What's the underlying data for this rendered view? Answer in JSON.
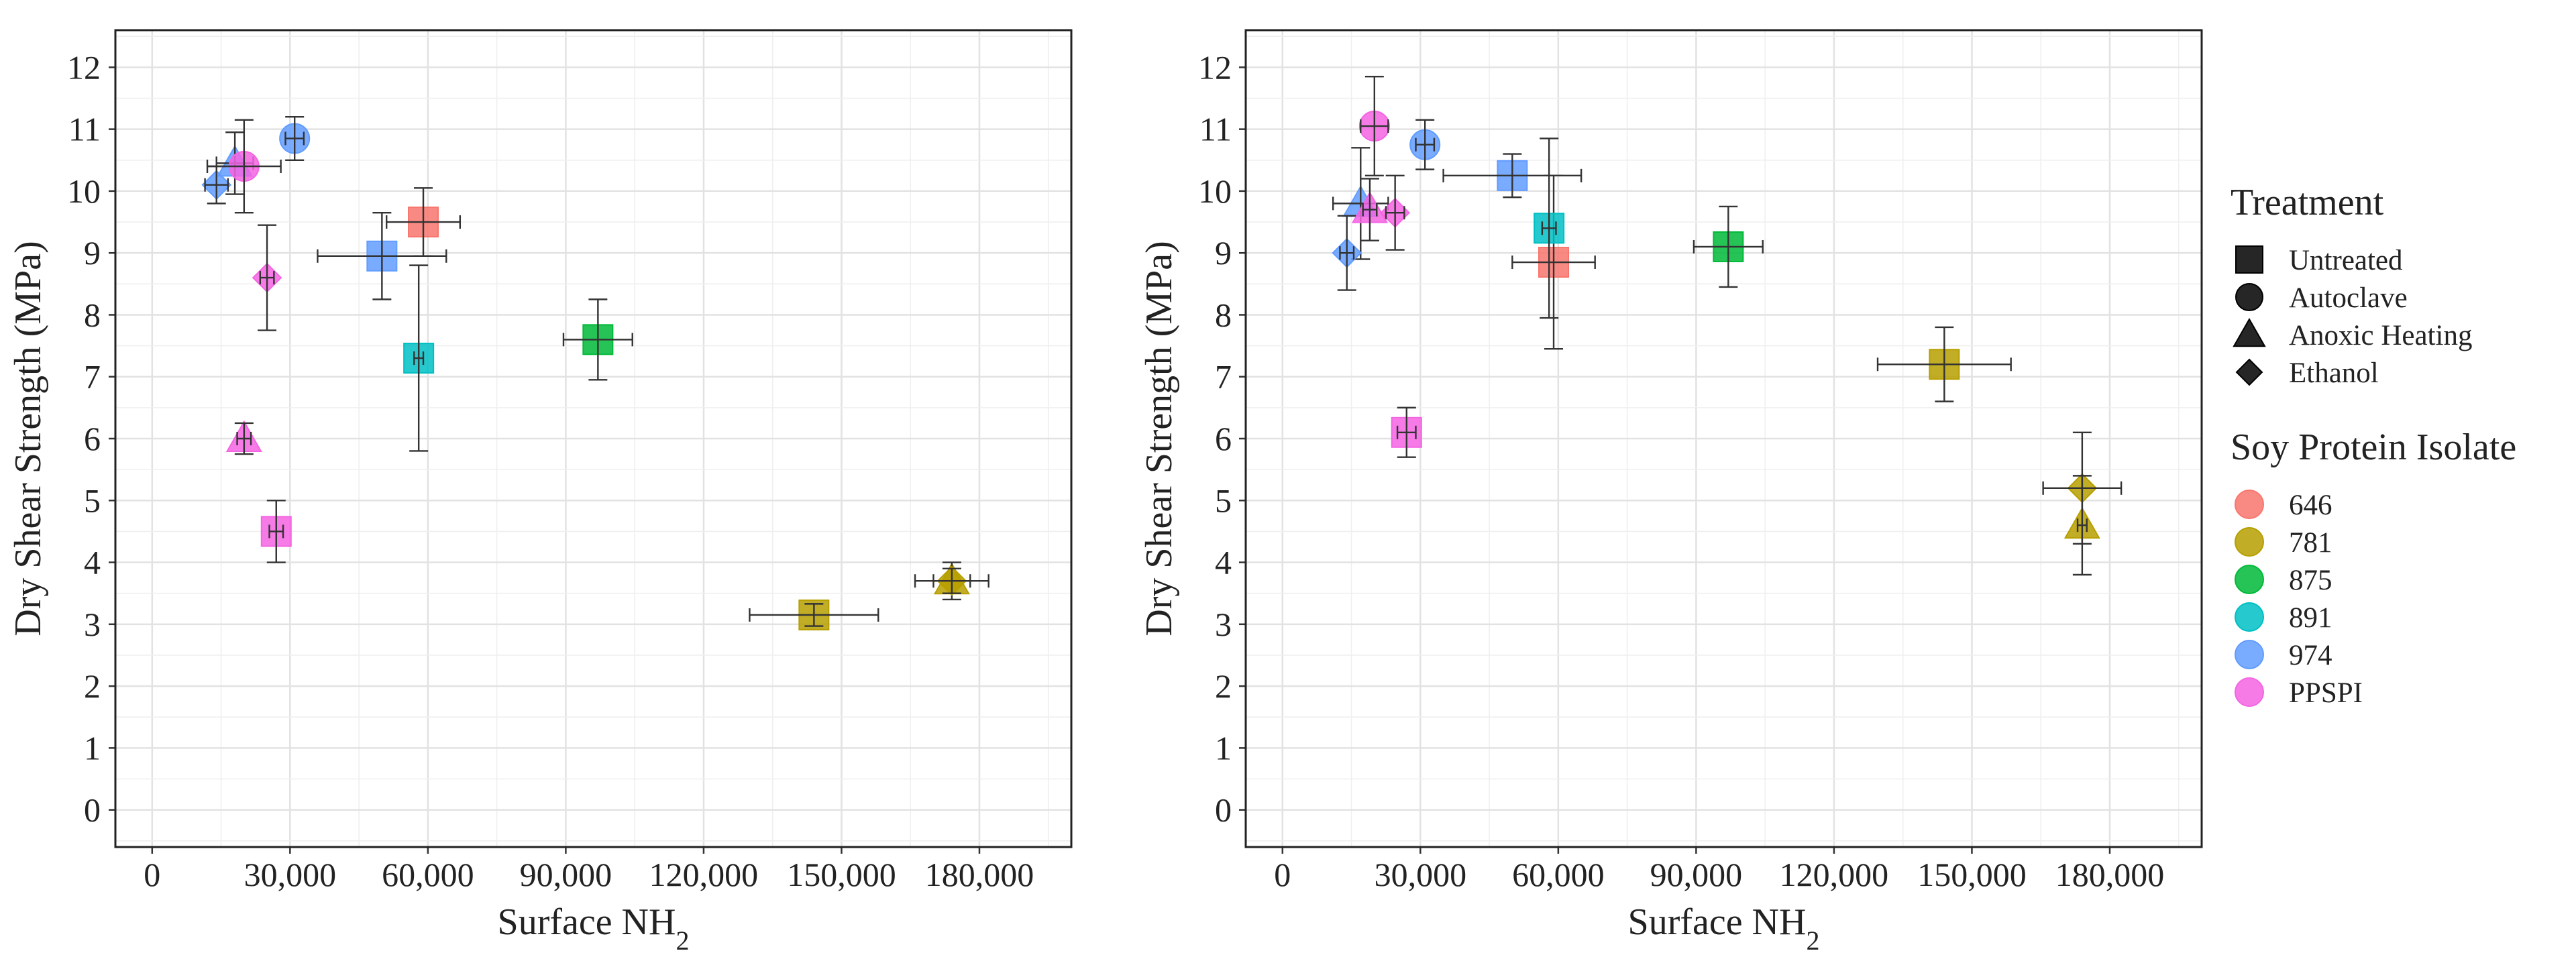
{
  "figure": {
    "legend": {
      "treatment_title": "Treatment",
      "treatment_entries": [
        {
          "label": "Untreated",
          "shape": "square"
        },
        {
          "label": "Autoclave",
          "shape": "circle"
        },
        {
          "label": "Anoxic Heating",
          "shape": "triangle"
        },
        {
          "label": "Ethanol",
          "shape": "diamond"
        }
      ],
      "spi_title": "Soy Protein Isolate",
      "spi_entries": [
        {
          "label": "646",
          "color": "#F8766D"
        },
        {
          "label": "781",
          "color": "#B79F00"
        },
        {
          "label": "875",
          "color": "#00BA38"
        },
        {
          "label": "891",
          "color": "#00BFC4"
        },
        {
          "label": "974",
          "color": "#619CFF"
        },
        {
          "label": "PPSPI",
          "color": "#F564E3"
        }
      ]
    }
  },
  "chart_data": [
    {
      "type": "scatter",
      "title": "",
      "xlabel": "Surface NH",
      "xlabel_subscript": "2",
      "ylabel": "Dry Shear Strength (MPa)",
      "xlim": [
        -8000,
        200000
      ],
      "ylim": [
        -0.6,
        12.6
      ],
      "xticks": [
        0,
        30000,
        60000,
        90000,
        120000,
        150000,
        180000
      ],
      "xtick_labels": [
        "0",
        "30,000",
        "60,000",
        "90,000",
        "120,000",
        "150,000",
        "180,000"
      ],
      "yticks": [
        0,
        1,
        2,
        3,
        4,
        5,
        6,
        7,
        8,
        9,
        10,
        11,
        12
      ],
      "ytick_labels": [
        "0",
        "1",
        "2",
        "3",
        "4",
        "5",
        "6",
        "7",
        "8",
        "9",
        "10",
        "11",
        "12"
      ],
      "grid": true,
      "points": [
        {
          "spi": "646",
          "treatment": "Untreated",
          "x": 59000,
          "y": 9.5,
          "xerr": 8000,
          "yerr": 0.55
        },
        {
          "spi": "781",
          "treatment": "Untreated",
          "x": 144000,
          "y": 3.15,
          "xerr": 14000,
          "yerr": 0.18
        },
        {
          "spi": "781",
          "treatment": "Anoxic Heating",
          "x": 174000,
          "y": 3.7,
          "xerr": 8000,
          "yerr": 0.3
        },
        {
          "spi": "781",
          "treatment": "Ethanol",
          "x": 174000,
          "y": 3.7,
          "xerr": 4000,
          "yerr": 0.2
        },
        {
          "spi": "875",
          "treatment": "Untreated",
          "x": 97000,
          "y": 7.6,
          "xerr": 7500,
          "yerr": 0.65
        },
        {
          "spi": "891",
          "treatment": "Untreated",
          "x": 58000,
          "y": 7.3,
          "xerr": 1000,
          "yerr": 1.5
        },
        {
          "spi": "974",
          "treatment": "Untreated",
          "x": 50000,
          "y": 8.95,
          "xerr": 14000,
          "yerr": 0.7
        },
        {
          "spi": "974",
          "treatment": "Autoclave",
          "x": 31000,
          "y": 10.85,
          "xerr": 2000,
          "yerr": 0.35
        },
        {
          "spi": "974",
          "treatment": "Anoxic Heating",
          "x": 18000,
          "y": 10.45,
          "xerr": 4000,
          "yerr": 0.5
        },
        {
          "spi": "974",
          "treatment": "Ethanol",
          "x": 14000,
          "y": 10.1,
          "xerr": 2500,
          "yerr": 0.3
        },
        {
          "spi": "PPSPI",
          "treatment": "Untreated",
          "x": 27000,
          "y": 4.5,
          "xerr": 1500,
          "yerr": 0.5
        },
        {
          "spi": "PPSPI",
          "treatment": "Autoclave",
          "x": 20000,
          "y": 10.4,
          "xerr": 8000,
          "yerr": 0.75
        },
        {
          "spi": "PPSPI",
          "treatment": "Anoxic Heating",
          "x": 20000,
          "y": 6.0,
          "xerr": 1500,
          "yerr": 0.25
        },
        {
          "spi": "PPSPI",
          "treatment": "Ethanol",
          "x": 25000,
          "y": 8.6,
          "xerr": 1500,
          "yerr": 0.85
        }
      ]
    },
    {
      "type": "scatter",
      "title": "",
      "xlabel": "Surface NH",
      "xlabel_subscript": "2",
      "ylabel": "Dry Shear Strength (MPa)",
      "xlim": [
        -8000,
        200000
      ],
      "ylim": [
        -0.6,
        12.6
      ],
      "xticks": [
        0,
        30000,
        60000,
        90000,
        120000,
        150000,
        180000
      ],
      "xtick_labels": [
        "0",
        "30,000",
        "60,000",
        "90,000",
        "120,000",
        "150,000",
        "180,000"
      ],
      "yticks": [
        0,
        1,
        2,
        3,
        4,
        5,
        6,
        7,
        8,
        9,
        10,
        11,
        12
      ],
      "ytick_labels": [
        "0",
        "1",
        "2",
        "3",
        "4",
        "5",
        "6",
        "7",
        "8",
        "9",
        "10",
        "11",
        "12"
      ],
      "grid": true,
      "points": [
        {
          "spi": "646",
          "treatment": "Untreated",
          "x": 59000,
          "y": 8.85,
          "xerr": 9000,
          "yerr": 1.4
        },
        {
          "spi": "781",
          "treatment": "Untreated",
          "x": 144000,
          "y": 7.2,
          "xerr": 14500,
          "yerr": 0.6
        },
        {
          "spi": "781",
          "treatment": "Ethanol",
          "x": 174000,
          "y": 5.2,
          "xerr": 8500,
          "yerr": 0.9
        },
        {
          "spi": "781",
          "treatment": "Anoxic Heating",
          "x": 174000,
          "y": 4.6,
          "xerr": 1000,
          "yerr": 0.8
        },
        {
          "spi": "875",
          "treatment": "Untreated",
          "x": 97000,
          "y": 9.1,
          "xerr": 7500,
          "yerr": 0.65
        },
        {
          "spi": "891",
          "treatment": "Untreated",
          "x": 58000,
          "y": 9.4,
          "xerr": 1500,
          "yerr": 1.45
        },
        {
          "spi": "974",
          "treatment": "Untreated",
          "x": 50000,
          "y": 10.25,
          "xerr": 15000,
          "yerr": 0.35
        },
        {
          "spi": "974",
          "treatment": "Autoclave",
          "x": 31000,
          "y": 10.75,
          "xerr": 2000,
          "yerr": 0.4
        },
        {
          "spi": "974",
          "treatment": "Anoxic Heating",
          "x": 17000,
          "y": 9.8,
          "xerr": 6000,
          "yerr": 0.9
        },
        {
          "spi": "974",
          "treatment": "Ethanol",
          "x": 14000,
          "y": 9.0,
          "xerr": 1500,
          "yerr": 0.6
        },
        {
          "spi": "PPSPI",
          "treatment": "Autoclave",
          "x": 20000,
          "y": 11.05,
          "xerr": 3000,
          "yerr": 0.8
        },
        {
          "spi": "PPSPI",
          "treatment": "Untreated",
          "x": 27000,
          "y": 6.1,
          "xerr": 2000,
          "yerr": 0.4
        },
        {
          "spi": "PPSPI",
          "treatment": "Ethanol",
          "x": 24500,
          "y": 9.65,
          "xerr": 2000,
          "yerr": 0.6
        },
        {
          "spi": "PPSPI",
          "treatment": "Anoxic Heating",
          "x": 19000,
          "y": 9.7,
          "xerr": 1500,
          "yerr": 0.5
        }
      ]
    }
  ]
}
